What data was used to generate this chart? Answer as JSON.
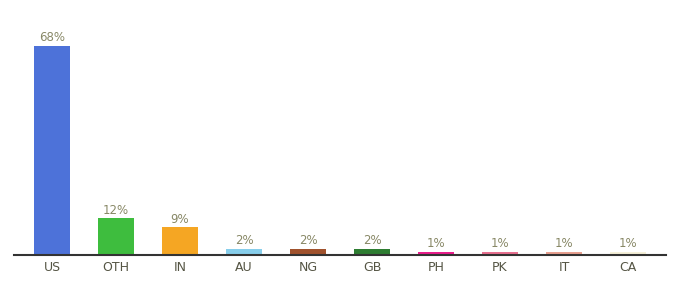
{
  "categories": [
    "US",
    "OTH",
    "IN",
    "AU",
    "NG",
    "GB",
    "PH",
    "PK",
    "IT",
    "CA"
  ],
  "values": [
    68,
    12,
    9,
    2,
    2,
    2,
    1,
    1,
    1,
    1
  ],
  "labels": [
    "68%",
    "12%",
    "9%",
    "2%",
    "2%",
    "2%",
    "1%",
    "1%",
    "1%",
    "1%"
  ],
  "colors": [
    "#4d72d9",
    "#3ebd3e",
    "#f5a623",
    "#87ceeb",
    "#a0522d",
    "#2e7d32",
    "#e91e8c",
    "#e87090",
    "#e8a090",
    "#f5f0d8"
  ],
  "background_color": "#ffffff",
  "ylim": [
    0,
    75
  ],
  "label_color": "#888866",
  "xlabel_color": "#555544",
  "bar_width": 0.55
}
